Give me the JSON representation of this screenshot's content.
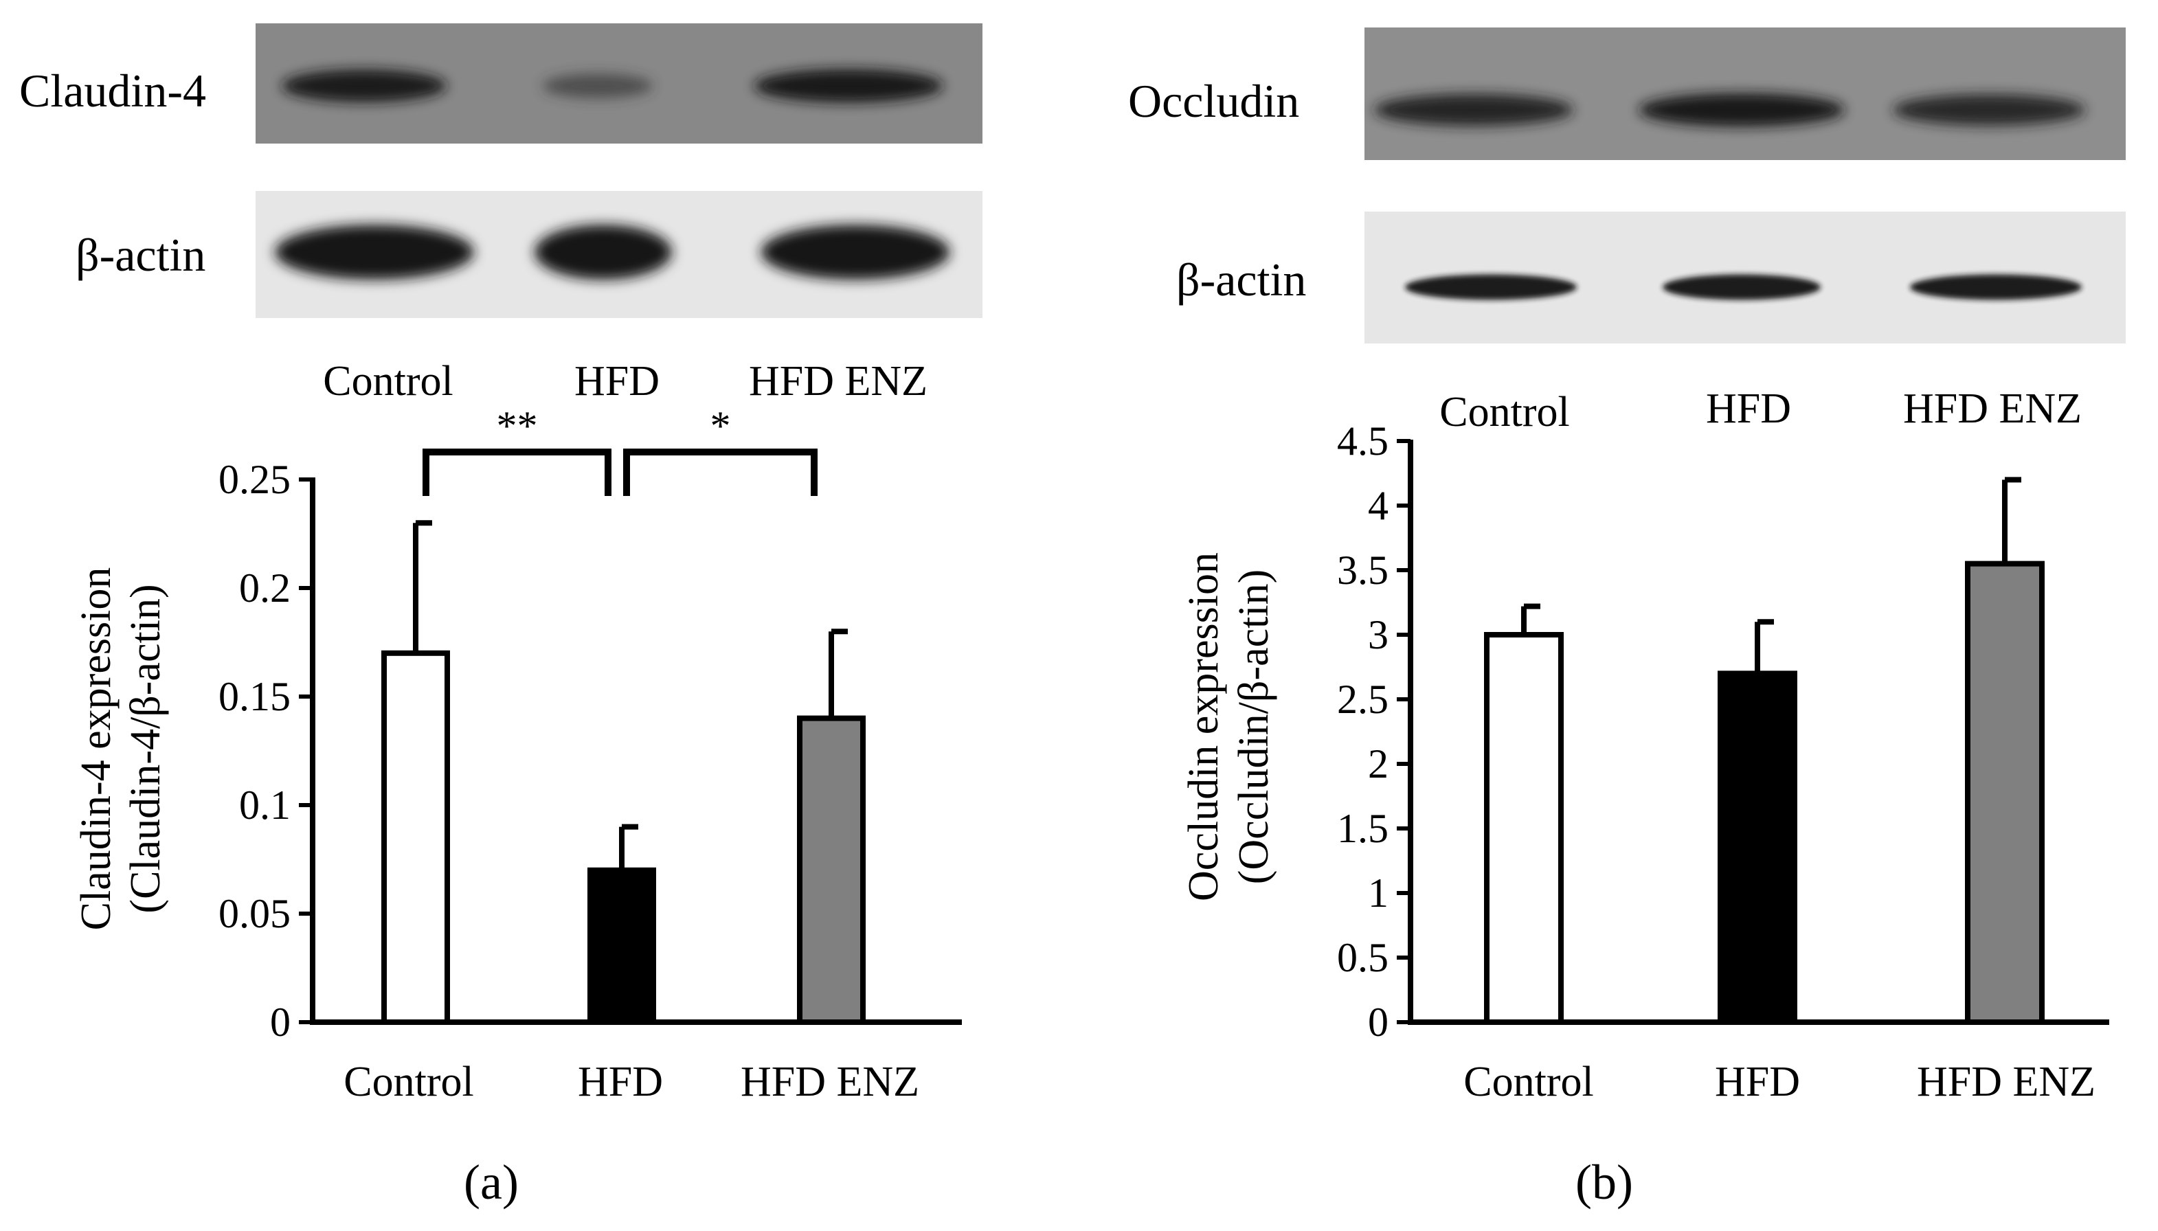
{
  "panels": [
    {
      "id": "a",
      "panel_label": "(a)",
      "blot": {
        "target_label": "Claudin-4",
        "loading_label": "β-actin",
        "lane_labels": [
          "Control",
          "HFD",
          "HFD ENZ"
        ],
        "target_band_intensity": [
          0.9,
          0.35,
          0.95
        ],
        "loading_band_intensity": [
          1.0,
          1.0,
          1.0
        ]
      },
      "significance": [
        {
          "from": 0,
          "to": 1,
          "label": "**"
        },
        {
          "from": 1,
          "to": 2,
          "label": "*"
        }
      ]
    },
    {
      "id": "b",
      "panel_label": "(b)",
      "blot": {
        "target_label": "Occludin",
        "loading_label": "β-actin",
        "lane_labels": [
          "Control",
          "HFD",
          "HFD ENZ"
        ],
        "target_band_intensity": [
          0.85,
          0.95,
          0.8
        ],
        "loading_band_intensity": [
          0.95,
          0.95,
          0.95
        ]
      },
      "significance": []
    }
  ],
  "chart_data": [
    {
      "type": "bar",
      "categories": [
        "Control",
        "HFD",
        "HFD ENZ"
      ],
      "values": [
        0.17,
        0.07,
        0.14
      ],
      "errors": [
        0.06,
        0.02,
        0.04
      ],
      "bar_colors": [
        "#ffffff",
        "#000000",
        "#808080"
      ],
      "ylabel_line1": "Claudin-4 expression",
      "ylabel_line2": "(Claudin-4/β-actin)",
      "ylim": [
        0,
        0.25
      ],
      "yticks": [
        0,
        0.05,
        0.1,
        0.15,
        0.2,
        0.25
      ],
      "ytick_labels": [
        "0",
        "0.05",
        "0.1",
        "0.15",
        "0.2",
        "0.25"
      ],
      "grid": false
    },
    {
      "type": "bar",
      "categories": [
        "Control",
        "HFD",
        "HFD ENZ"
      ],
      "values": [
        3.0,
        2.7,
        3.55
      ],
      "errors": [
        0.22,
        0.4,
        0.65
      ],
      "bar_colors": [
        "#ffffff",
        "#000000",
        "#808080"
      ],
      "ylabel_line1": "Occludin expression",
      "ylabel_line2": "(Occludin/β-actin)",
      "ylim": [
        0,
        4.5
      ],
      "yticks": [
        0,
        0.5,
        1,
        1.5,
        2,
        2.5,
        3,
        3.5,
        4,
        4.5
      ],
      "ytick_labels": [
        "0",
        "0.5",
        "1",
        "1.5",
        "2",
        "2.5",
        "3",
        "3.5",
        "4",
        "4.5"
      ],
      "grid": false
    }
  ]
}
